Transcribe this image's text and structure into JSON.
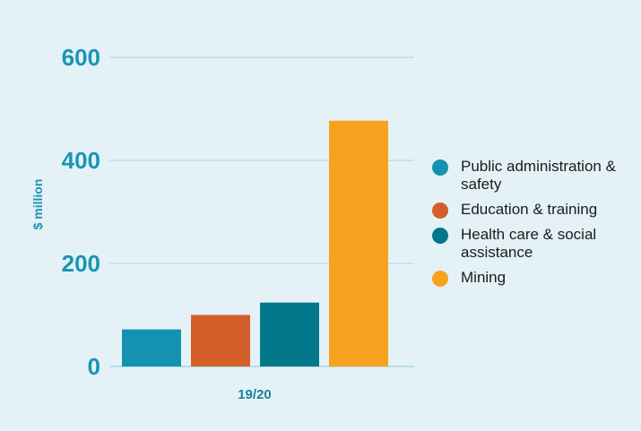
{
  "chart_data": {
    "type": "bar",
    "title": "",
    "xlabel": "",
    "ylabel": "$ million",
    "categories": [
      "19/20"
    ],
    "series": [
      {
        "name": "Public administration & safety",
        "values": [
          72
        ],
        "color": "#1592b0"
      },
      {
        "name": "Education & training",
        "values": [
          100
        ],
        "color": "#d45f2a"
      },
      {
        "name": "Health care & social assistance",
        "values": [
          124
        ],
        "color": "#01788a"
      },
      {
        "name": "Mining",
        "values": [
          477
        ],
        "color": "#f8a31f"
      }
    ],
    "ylim": [
      0,
      600
    ],
    "yticks": [
      0,
      200,
      400,
      600
    ],
    "grid": true,
    "legend_position": "right"
  }
}
